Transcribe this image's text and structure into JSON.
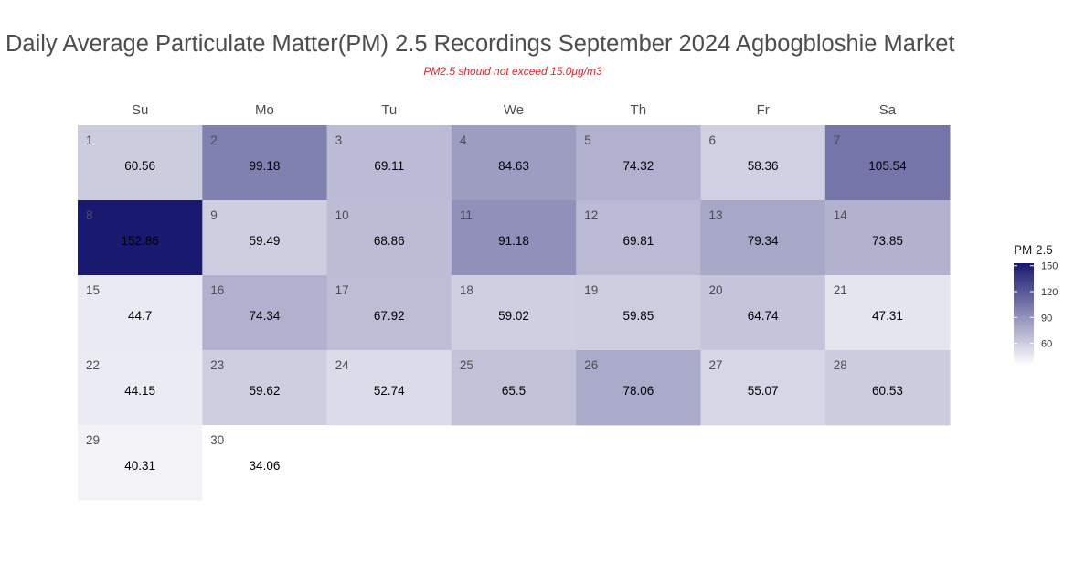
{
  "chart_data": {
    "type": "heatmap",
    "title": "Daily Average Particulate Matter(PM) 2.5 Recordings September 2024 Agbogbloshie Market",
    "subtitle": "PM2.5 should not exceed 15.0μg/m3",
    "weekdays": [
      "Su",
      "Mo",
      "Tu",
      "We",
      "Th",
      "Fr",
      "Sa"
    ],
    "first_weekday_index": 0,
    "days": [
      {
        "day": "1",
        "value": 60.56
      },
      {
        "day": "2",
        "value": 99.18
      },
      {
        "day": "3",
        "value": 69.11
      },
      {
        "day": "4",
        "value": 84.63
      },
      {
        "day": "5",
        "value": 74.32
      },
      {
        "day": "6",
        "value": 58.36
      },
      {
        "day": "7",
        "value": 105.54
      },
      {
        "day": "8",
        "value": 152.86
      },
      {
        "day": "9",
        "value": 59.49
      },
      {
        "day": "10",
        "value": 68.86
      },
      {
        "day": "11",
        "value": 91.18
      },
      {
        "day": "12",
        "value": 69.81
      },
      {
        "day": "13",
        "value": 79.34
      },
      {
        "day": "14",
        "value": 73.85
      },
      {
        "day": "15",
        "value": 44.7
      },
      {
        "day": "16",
        "value": 74.34
      },
      {
        "day": "17",
        "value": 67.92
      },
      {
        "day": "18",
        "value": 59.02
      },
      {
        "day": "19",
        "value": 59.85
      },
      {
        "day": "20",
        "value": 64.74
      },
      {
        "day": "21",
        "value": 47.31
      },
      {
        "day": "22",
        "value": 44.15
      },
      {
        "day": "23",
        "value": 59.62
      },
      {
        "day": "24",
        "value": 52.74
      },
      {
        "day": "25",
        "value": 65.5
      },
      {
        "day": "26",
        "value": 78.06
      },
      {
        "day": "27",
        "value": 55.07
      },
      {
        "day": "28",
        "value": 60.53
      },
      {
        "day": "29",
        "value": 40.31
      },
      {
        "day": "30",
        "value": 34.06
      }
    ],
    "legend": {
      "title": "PM 2.5",
      "ticks": [
        60,
        90,
        120,
        150
      ],
      "range": [
        34.06,
        152.86
      ],
      "placement": "right"
    },
    "colors": {
      "low": "#ffffff",
      "high": "#191970"
    }
  }
}
